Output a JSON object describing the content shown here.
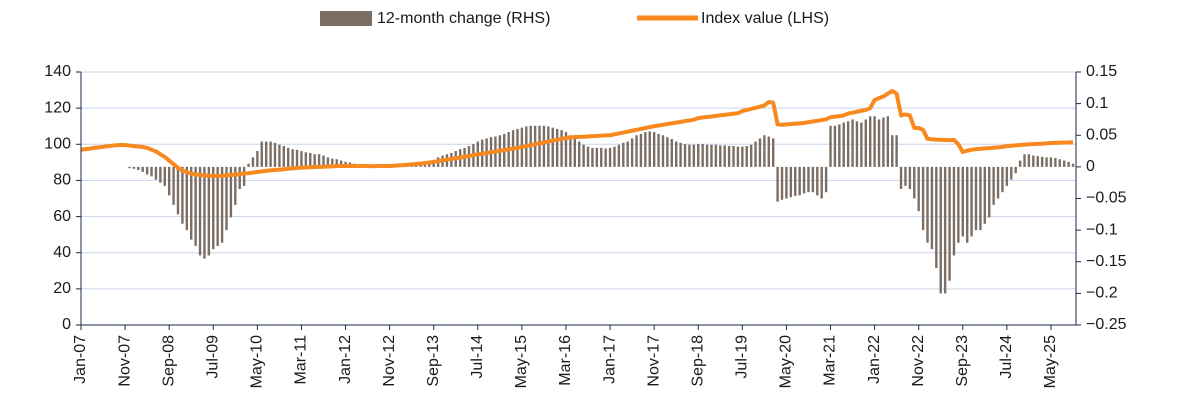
{
  "chart_data": {
    "type": "bar",
    "categories": [
      "Jan-07",
      null,
      null,
      null,
      null,
      null,
      null,
      null,
      null,
      null,
      "Nov-07",
      null,
      null,
      null,
      null,
      null,
      null,
      null,
      null,
      null,
      "Sep-08",
      null,
      null,
      null,
      null,
      null,
      null,
      null,
      null,
      null,
      "Jul-09",
      null,
      null,
      null,
      null,
      null,
      null,
      null,
      null,
      null,
      "May-10",
      null,
      null,
      null,
      null,
      null,
      null,
      null,
      null,
      null,
      "Mar-11",
      null,
      null,
      null,
      null,
      null,
      null,
      null,
      null,
      null,
      "Jan-12",
      null,
      null,
      null,
      null,
      null,
      null,
      null,
      null,
      null,
      "Nov-12",
      null,
      null,
      null,
      null,
      null,
      null,
      null,
      null,
      null,
      "Sep-13",
      null,
      null,
      null,
      null,
      null,
      null,
      null,
      null,
      null,
      "Jul-14",
      null,
      null,
      null,
      null,
      null,
      null,
      null,
      null,
      null,
      "May-15",
      null,
      null,
      null,
      null,
      null,
      null,
      null,
      null,
      null,
      "Mar-16",
      null,
      null,
      null,
      null,
      null,
      null,
      null,
      null,
      null,
      "Jan-17",
      null,
      null,
      null,
      null,
      null,
      null,
      null,
      null,
      null,
      "Nov-17",
      null,
      null,
      null,
      null,
      null,
      null,
      null,
      null,
      null,
      "Sep-18",
      null,
      null,
      null,
      null,
      null,
      null,
      null,
      null,
      null,
      "Jul-19",
      null,
      null,
      null,
      null,
      null,
      null,
      null,
      null,
      null,
      "May-20",
      null,
      null,
      null,
      null,
      null,
      null,
      null,
      null,
      null,
      "Mar-21",
      null,
      null,
      null,
      null,
      null,
      null,
      null,
      null,
      null,
      "Jan-22",
      null,
      null,
      null,
      null,
      null,
      null,
      null,
      null,
      null,
      "Nov-22",
      null,
      null,
      null,
      null,
      null,
      null,
      null,
      null,
      null,
      "Sep-23",
      null,
      null,
      null,
      null,
      null,
      null,
      null,
      null,
      null,
      "Jul-24",
      null,
      null,
      null,
      null,
      null,
      null,
      null,
      null,
      null,
      "May-25",
      null,
      null,
      null,
      null,
      null
    ],
    "series": [
      {
        "name": "12-month change (RHS)",
        "type": "bar",
        "axis": "y2",
        "color": "#7b6e65",
        "values": [
          0,
          0,
          0,
          0,
          0,
          0,
          0,
          0,
          0,
          0,
          0,
          -0.002,
          -0.003,
          -0.005,
          -0.008,
          -0.012,
          -0.015,
          -0.02,
          -0.025,
          -0.03,
          -0.045,
          -0.06,
          -0.075,
          -0.09,
          -0.1,
          -0.115,
          -0.125,
          -0.14,
          -0.145,
          -0.14,
          -0.13,
          -0.125,
          -0.12,
          -0.1,
          -0.08,
          -0.06,
          -0.035,
          -0.03,
          0.005,
          0.015,
          0.025,
          0.04,
          0.04,
          0.04,
          0.038,
          0.035,
          0.033,
          0.03,
          0.028,
          0.027,
          0.025,
          0.023,
          0.022,
          0.02,
          0.02,
          0.018,
          0.015,
          0.013,
          0.012,
          0.01,
          0.008,
          0.007,
          0.005,
          0.004,
          0.003,
          0.002,
          0.001,
          0,
          0,
          0,
          0,
          0,
          0.001,
          0.002,
          0.003,
          0.004,
          0.005,
          0.006,
          0.007,
          0.008,
          0.01,
          0.015,
          0.018,
          0.02,
          0.022,
          0.025,
          0.028,
          0.03,
          0.033,
          0.036,
          0.04,
          0.043,
          0.045,
          0.047,
          0.048,
          0.05,
          0.052,
          0.055,
          0.058,
          0.06,
          0.062,
          0.064,
          0.065,
          0.065,
          0.065,
          0.065,
          0.064,
          0.062,
          0.06,
          0.058,
          0.055,
          0.05,
          0.045,
          0.04,
          0.035,
          0.032,
          0.03,
          0.03,
          0.03,
          0.029,
          0.03,
          0.032,
          0.035,
          0.038,
          0.04,
          0.045,
          0.05,
          0.052,
          0.055,
          0.056,
          0.055,
          0.052,
          0.05,
          0.047,
          0.044,
          0.04,
          0.038,
          0.036,
          0.035,
          0.035,
          0.036,
          0.036,
          0.035,
          0.035,
          0.035,
          0.034,
          0.034,
          0.033,
          0.033,
          0.032,
          0.032,
          0.033,
          0.035,
          0.04,
          0.045,
          0.05,
          0.048,
          0.045,
          -0.055,
          -0.052,
          -0.05,
          -0.048,
          -0.046,
          -0.045,
          -0.042,
          -0.04,
          -0.04,
          -0.045,
          -0.05,
          -0.04,
          0.065,
          0.065,
          0.067,
          0.07,
          0.072,
          0.075,
          0.072,
          0.07,
          0.075,
          0.08,
          0.08,
          0.075,
          0.078,
          0.08,
          0.05,
          0.05,
          -0.035,
          -0.03,
          -0.035,
          -0.05,
          -0.07,
          -0.1,
          -0.12,
          -0.13,
          -0.16,
          -0.2,
          -0.2,
          -0.18,
          -0.14,
          -0.12,
          -0.11,
          -0.12,
          -0.11,
          -0.1,
          -0.1,
          -0.09,
          -0.08,
          -0.06,
          -0.05,
          -0.04,
          -0.03,
          -0.02,
          -0.01,
          0.01,
          0.02,
          0.02,
          0.018,
          0.017,
          0.016,
          0.015,
          0.015,
          0.014,
          0.012,
          0.01,
          0.008,
          0.005
        ]
      },
      {
        "name": "Index value (LHS)",
        "type": "line",
        "axis": "y",
        "color": "#f7891f",
        "values": [
          97,
          97.3,
          97.6,
          98,
          98.3,
          98.6,
          98.9,
          99.2,
          99.5,
          99.6,
          99.6,
          99.3,
          99,
          98.8,
          98.5,
          98,
          97,
          96,
          94.5,
          93,
          91,
          89,
          87,
          85.5,
          84.5,
          83.8,
          83.3,
          83,
          82.8,
          82.6,
          82.5,
          82.5,
          82.6,
          82.8,
          83,
          83.2,
          83.5,
          83.8,
          84,
          84.3,
          84.7,
          85,
          85.3,
          85.6,
          85.8,
          86,
          86.2,
          86.5,
          86.7,
          86.9,
          87,
          87.2,
          87.3,
          87.4,
          87.5,
          87.6,
          87.7,
          87.8,
          87.9,
          88,
          88,
          88,
          88,
          88,
          88,
          87.9,
          87.9,
          87.9,
          88,
          88,
          88,
          88.1,
          88.3,
          88.5,
          88.7,
          88.9,
          89.1,
          89.3,
          89.6,
          89.9,
          90.3,
          90.7,
          91.1,
          91.5,
          91.9,
          92.3,
          92.7,
          93.1,
          93.5,
          94,
          94.4,
          94.8,
          95.2,
          95.6,
          96,
          96.4,
          96.8,
          97.2,
          97.6,
          98,
          98.5,
          99,
          99.5,
          100,
          100.5,
          101,
          101.5,
          102,
          102.5,
          103,
          103.5,
          103.8,
          104,
          104.1,
          104.2,
          104.3,
          104.5,
          104.6,
          104.8,
          104.9,
          105,
          105.5,
          106,
          106.5,
          107,
          107.5,
          108,
          108.5,
          109,
          109.5,
          110,
          110.4,
          110.8,
          111.2,
          111.6,
          112,
          112.4,
          112.8,
          113.2,
          113.6,
          114.5,
          114.8,
          115.1,
          115.4,
          115.7,
          116,
          116.3,
          116.6,
          116.9,
          117.2,
          118.4,
          119,
          119.6,
          120.2,
          120.8,
          121.5,
          123.4,
          123,
          111,
          110.8,
          111,
          111.2,
          111.4,
          111.6,
          111.8,
          112.2,
          112.6,
          113,
          113.4,
          113.8,
          115,
          115.3,
          115.6,
          116,
          117,
          117.5,
          118,
          118.5,
          119,
          120,
          124.5,
          125.5,
          126.5,
          128,
          129.5,
          128,
          116,
          116.5,
          116,
          109,
          109,
          108,
          103,
          102.8,
          102.6,
          102.5,
          102.4,
          102.3,
          102.4,
          100,
          95.7,
          96.5,
          97,
          97.3,
          97.5,
          97.7,
          97.9,
          98.1,
          98.3,
          98.5,
          99,
          99.2,
          99.4,
          99.6,
          99.8,
          100,
          100.1,
          100.2,
          100.3,
          100.5,
          100.7,
          100.8,
          100.9,
          101,
          101,
          101.2
        ]
      }
    ],
    "ylim": [
      0,
      140
    ],
    "yticks": [
      0,
      20,
      40,
      60,
      80,
      100,
      120,
      140
    ],
    "y2lim": [
      -0.25,
      0.15
    ],
    "y2ticks": [
      {
        "value": -0.25,
        "label": "−0.25"
      },
      {
        "value": -0.2,
        "label": "−0.2"
      },
      {
        "value": -0.15,
        "label": "−0.15"
      },
      {
        "value": -0.1,
        "label": "−0.1"
      },
      {
        "value": -0.05,
        "label": "−0.05"
      },
      0,
      0.05,
      0.1,
      0.15
    ],
    "grid": true,
    "legend": "top"
  }
}
